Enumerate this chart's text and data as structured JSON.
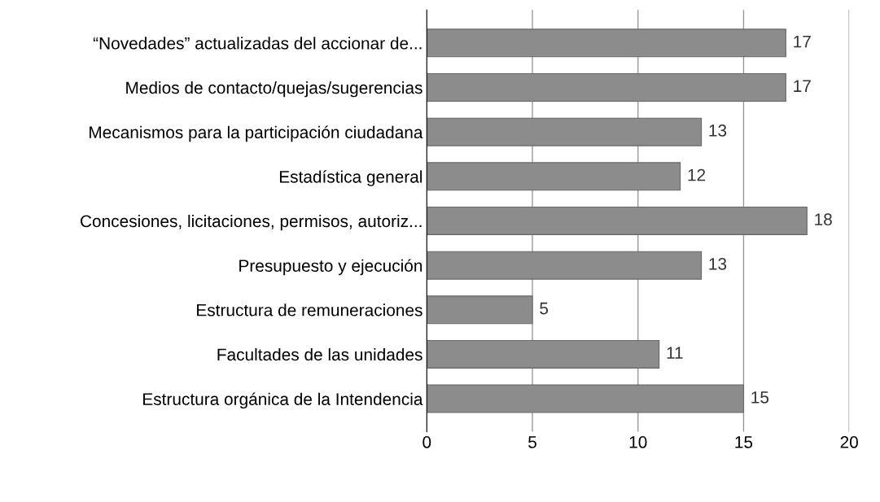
{
  "chart_data": {
    "type": "bar",
    "orientation": "horizontal",
    "categories": [
      "“Novedades” actualizadas del accionar de...",
      "Medios de contacto/quejas/sugerencias",
      "Mecanismos para la participación ciudadana",
      "Estadística general",
      "Concesiones, licitaciones, permisos, autoriz...",
      "Presupuesto y ejecución",
      "Estructura de remuneraciones",
      "Facultades de las unidades",
      "Estructura orgánica de la Intendencia"
    ],
    "values": [
      17,
      17,
      13,
      12,
      18,
      13,
      5,
      11,
      15
    ],
    "color": "#8c8c8c",
    "xlim": [
      0,
      20
    ],
    "xticks": [
      0,
      5,
      10,
      15,
      20
    ],
    "grid": "x",
    "data_labels": true
  }
}
